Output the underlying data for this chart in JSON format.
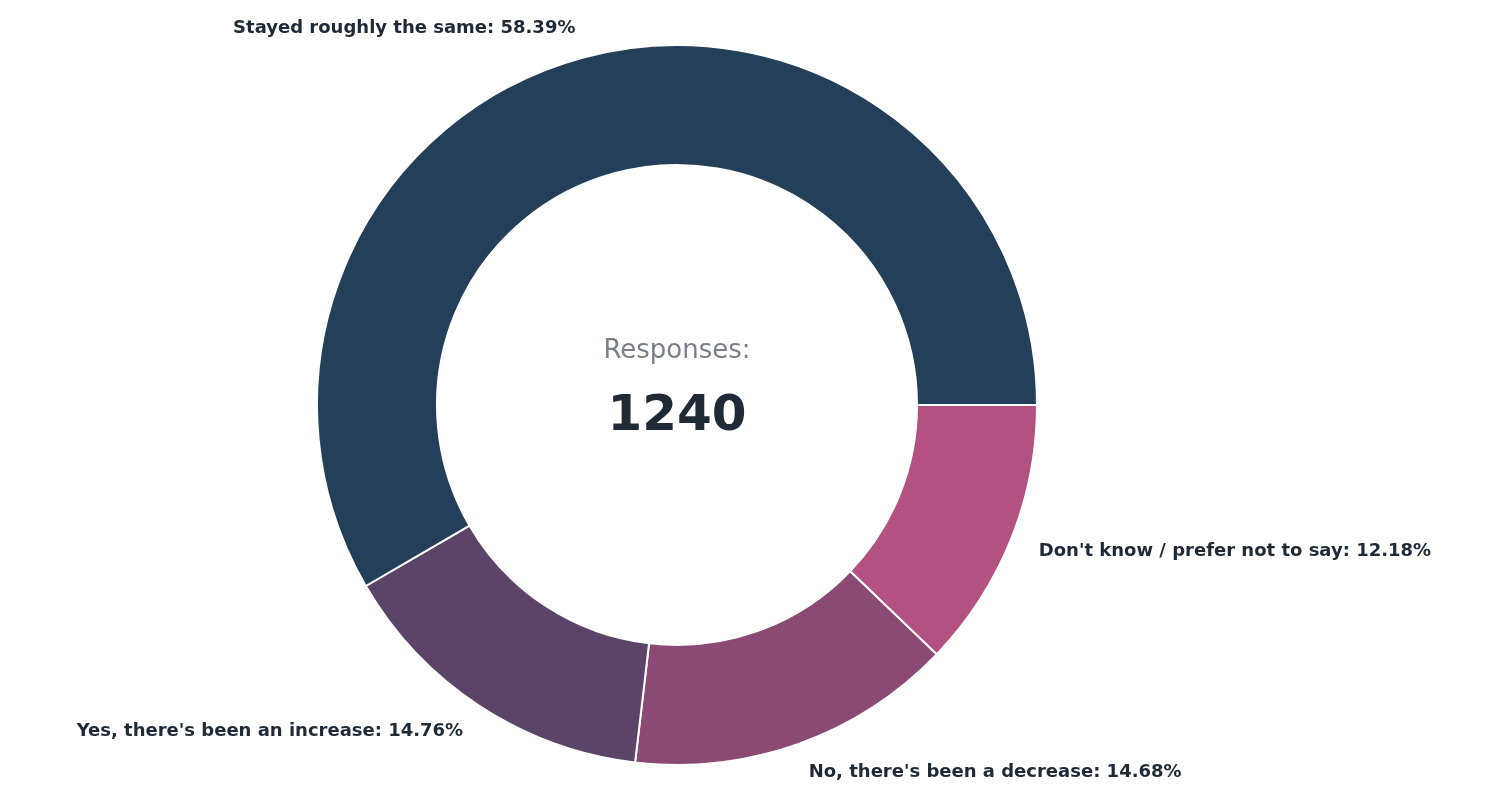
{
  "chart_data": {
    "type": "donut",
    "categories": [
      "Don't know / prefer not to say",
      "No, there's been a decrease",
      "Yes, there's been an increase",
      "Stayed roughly the same"
    ],
    "values": [
      12.18,
      14.68,
      14.76,
      58.39
    ],
    "value_labels": [
      "12.18%",
      "14.68%",
      "14.76%",
      "58.39%"
    ],
    "colors": [
      "#b35282",
      "#8a4a74",
      "#5b4468",
      "#243f5a"
    ],
    "annotations": [
      "Responses:",
      "1240"
    ]
  }
}
